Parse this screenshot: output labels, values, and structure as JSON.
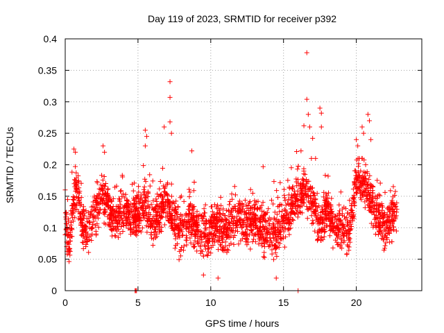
{
  "chart_data": {
    "type": "scatter",
    "title": "Day 119 of 2023, SRMTID for receiver p392",
    "xlabel": "GPS time / hours",
    "ylabel": "SRMTID / TECUs",
    "xlim": [
      0,
      24.5
    ],
    "ylim": [
      0,
      0.4
    ],
    "xticks": [
      0,
      5,
      10,
      15,
      20
    ],
    "xtick_labels": [
      "0",
      "5",
      "10",
      "15",
      "20"
    ],
    "yticks": [
      0,
      0.05,
      0.1,
      0.15,
      0.2,
      0.25,
      0.3,
      0.35,
      0.4
    ],
    "ytick_labels": [
      "0",
      "0.05",
      "0.1",
      "0.15",
      "0.2",
      "0.25",
      "0.3",
      "0.35",
      "0.4"
    ],
    "grid": true,
    "marker": "+",
    "color": "#ff0000",
    "series": [
      {
        "name": "SRMTID",
        "envelope": [
          {
            "x": 0.0,
            "y": 0.1
          },
          {
            "x": 0.3,
            "y": 0.08
          },
          {
            "x": 0.6,
            "y": 0.14
          },
          {
            "x": 0.8,
            "y": 0.16
          },
          {
            "x": 1.2,
            "y": 0.1
          },
          {
            "x": 1.6,
            "y": 0.09
          },
          {
            "x": 2.0,
            "y": 0.12
          },
          {
            "x": 2.5,
            "y": 0.15
          },
          {
            "x": 2.8,
            "y": 0.14
          },
          {
            "x": 3.2,
            "y": 0.12
          },
          {
            "x": 3.6,
            "y": 0.11
          },
          {
            "x": 4.0,
            "y": 0.13
          },
          {
            "x": 4.5,
            "y": 0.12
          },
          {
            "x": 5.0,
            "y": 0.12
          },
          {
            "x": 5.5,
            "y": 0.14
          },
          {
            "x": 6.0,
            "y": 0.1
          },
          {
            "x": 6.5,
            "y": 0.12
          },
          {
            "x": 7.0,
            "y": 0.15
          },
          {
            "x": 7.5,
            "y": 0.11
          },
          {
            "x": 8.0,
            "y": 0.09
          },
          {
            "x": 8.5,
            "y": 0.12
          },
          {
            "x": 9.0,
            "y": 0.1
          },
          {
            "x": 9.5,
            "y": 0.09
          },
          {
            "x": 10.0,
            "y": 0.1
          },
          {
            "x": 10.5,
            "y": 0.11
          },
          {
            "x": 11.0,
            "y": 0.09
          },
          {
            "x": 11.5,
            "y": 0.11
          },
          {
            "x": 12.0,
            "y": 0.12
          },
          {
            "x": 12.5,
            "y": 0.1
          },
          {
            "x": 13.0,
            "y": 0.11
          },
          {
            "x": 13.5,
            "y": 0.1
          },
          {
            "x": 14.0,
            "y": 0.09
          },
          {
            "x": 14.5,
            "y": 0.09
          },
          {
            "x": 15.0,
            "y": 0.11
          },
          {
            "x": 15.5,
            "y": 0.13
          },
          {
            "x": 16.0,
            "y": 0.15
          },
          {
            "x": 16.5,
            "y": 0.16
          },
          {
            "x": 17.0,
            "y": 0.14
          },
          {
            "x": 17.5,
            "y": 0.1
          },
          {
            "x": 18.0,
            "y": 0.13
          },
          {
            "x": 18.5,
            "y": 0.1
          },
          {
            "x": 19.0,
            "y": 0.1
          },
          {
            "x": 19.5,
            "y": 0.09
          },
          {
            "x": 20.0,
            "y": 0.18
          },
          {
            "x": 20.5,
            "y": 0.17
          },
          {
            "x": 21.0,
            "y": 0.14
          },
          {
            "x": 21.5,
            "y": 0.12
          },
          {
            "x": 22.0,
            "y": 0.09
          },
          {
            "x": 22.5,
            "y": 0.12
          },
          {
            "x": 22.8,
            "y": 0.12
          }
        ],
        "spread": 0.032,
        "points_per_hour": 115,
        "highlights": [
          {
            "x": 0.6,
            "y": 0.225
          },
          {
            "x": 0.7,
            "y": 0.22
          },
          {
            "x": 2.6,
            "y": 0.23
          },
          {
            "x": 2.7,
            "y": 0.22
          },
          {
            "x": 5.5,
            "y": 0.255
          },
          {
            "x": 5.6,
            "y": 0.245
          },
          {
            "x": 5.5,
            "y": 0.23
          },
          {
            "x": 6.8,
            "y": 0.26
          },
          {
            "x": 7.2,
            "y": 0.332
          },
          {
            "x": 7.2,
            "y": 0.307
          },
          {
            "x": 7.2,
            "y": 0.268
          },
          {
            "x": 7.3,
            "y": 0.25
          },
          {
            "x": 8.7,
            "y": 0.222
          },
          {
            "x": 13.6,
            "y": 0.197
          },
          {
            "x": 15.9,
            "y": 0.221
          },
          {
            "x": 16.2,
            "y": 0.222
          },
          {
            "x": 16.4,
            "y": 0.262
          },
          {
            "x": 16.6,
            "y": 0.378
          },
          {
            "x": 16.6,
            "y": 0.304
          },
          {
            "x": 16.7,
            "y": 0.28
          },
          {
            "x": 16.8,
            "y": 0.26
          },
          {
            "x": 17.0,
            "y": 0.242
          },
          {
            "x": 17.2,
            "y": 0.21
          },
          {
            "x": 17.5,
            "y": 0.29
          },
          {
            "x": 17.6,
            "y": 0.282
          },
          {
            "x": 17.6,
            "y": 0.26
          },
          {
            "x": 20.0,
            "y": 0.24
          },
          {
            "x": 20.1,
            "y": 0.23
          },
          {
            "x": 20.4,
            "y": 0.26
          },
          {
            "x": 20.5,
            "y": 0.25
          },
          {
            "x": 20.8,
            "y": 0.28
          },
          {
            "x": 20.9,
            "y": 0.27
          },
          {
            "x": 21.0,
            "y": 0.24
          },
          {
            "x": 0.0,
            "y": 0.16
          },
          {
            "x": 2.0,
            "y": 0.15
          },
          {
            "x": 4.8,
            "y": 0.0
          },
          {
            "x": 4.85,
            "y": 0.0
          },
          {
            "x": 4.9,
            "y": 0.0
          },
          {
            "x": 16.0,
            "y": 0.0
          },
          {
            "x": 14.5,
            "y": 0.02
          },
          {
            "x": 9.5,
            "y": 0.025
          },
          {
            "x": 10.5,
            "y": 0.02
          }
        ]
      }
    ]
  }
}
